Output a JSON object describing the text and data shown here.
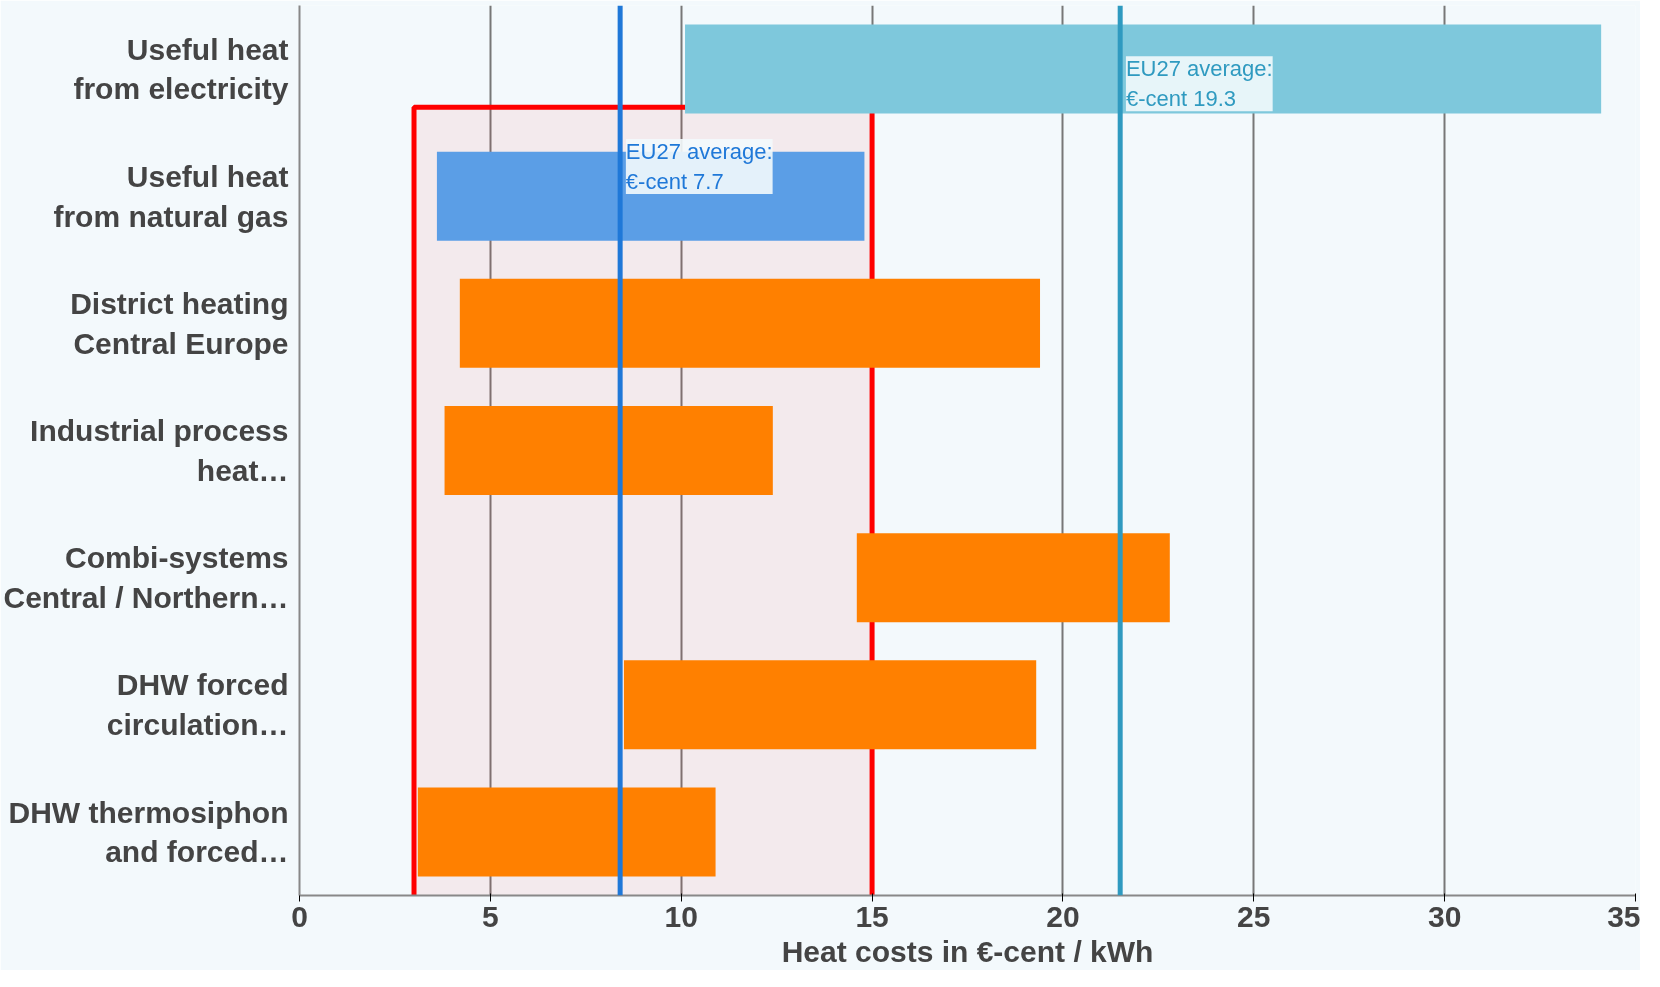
{
  "chart_data": {
    "type": "bar",
    "orientation": "horizontal",
    "xlabel": "Heat costs in €-cent / kWh",
    "categories": [
      "Useful heat\nfrom electricity",
      "Useful heat\nfrom natural gas",
      "District heating\nCentral Europe",
      "Industrial process\nheat…",
      "Combi-systems\nCentral / Northern…",
      "DHW forced\ncirculation…",
      "DHW thermosiphon\nand forced…"
    ],
    "series": [
      {
        "colors": [
          "#7ec8dc",
          "#5b9ee6",
          null,
          null,
          null,
          null,
          null
        ],
        "base": [
          10.1,
          3.6,
          null,
          null,
          null,
          null,
          null
        ],
        "values": [
          24.0,
          11.2,
          null,
          null,
          null,
          null,
          null
        ]
      },
      {
        "color": "#ff8000",
        "base": [
          null,
          null,
          4.2,
          3.8,
          14.6,
          8.5,
          3.1
        ],
        "values": [
          null,
          null,
          15.2,
          8.6,
          8.2,
          10.8,
          7.8
        ]
      }
    ],
    "xlim": [
      0,
      35
    ],
    "xticks": [
      0,
      5,
      10,
      15,
      20,
      25,
      30,
      35
    ],
    "grid": "x",
    "ref_lines": [
      {
        "axis": "x",
        "value": 8.4,
        "label": "EU27 average:\n€-cent 7.7",
        "color": "#1f78d8"
      },
      {
        "axis": "x",
        "value": 21.5,
        "label": "EU27 average:\n€-cent 19.3",
        "color": "#2f9ac0"
      }
    ],
    "bands": [
      {
        "axis": "x",
        "from": 3,
        "to": 15,
        "color": "#ff0000"
      }
    ]
  }
}
